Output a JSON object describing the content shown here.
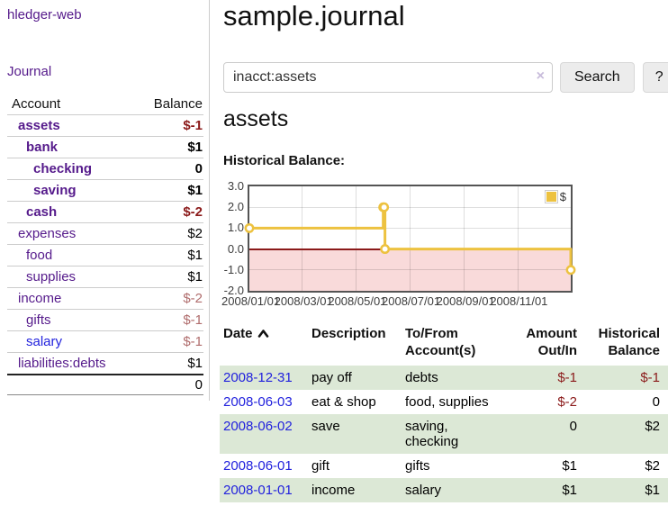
{
  "sidebar": {
    "app_title": "hledger-web",
    "nav": {
      "journal": "Journal"
    },
    "accounts_table": {
      "headers": {
        "account": "Account",
        "balance": "Balance"
      },
      "accounts": [
        {
          "name": "assets",
          "depth": 1,
          "bold": true,
          "link": "purple",
          "balance": "$-1",
          "tone": "neg-strong"
        },
        {
          "name": "bank",
          "depth": 2,
          "bold": true,
          "link": "purple",
          "balance": "$1",
          "tone": ""
        },
        {
          "name": "checking",
          "depth": 3,
          "bold": true,
          "link": "purple",
          "balance": "0",
          "tone": ""
        },
        {
          "name": "saving",
          "depth": 3,
          "bold": true,
          "link": "purple",
          "balance": "$1",
          "tone": ""
        },
        {
          "name": "cash",
          "depth": 2,
          "bold": true,
          "link": "purple",
          "balance": "$-2",
          "tone": "neg-strong"
        },
        {
          "name": "expenses",
          "depth": 1,
          "bold": false,
          "link": "purple",
          "balance": "$2",
          "tone": ""
        },
        {
          "name": "food",
          "depth": 2,
          "bold": false,
          "link": "purple",
          "balance": "$1",
          "tone": ""
        },
        {
          "name": "supplies",
          "depth": 2,
          "bold": false,
          "link": "purple",
          "balance": "$1",
          "tone": ""
        },
        {
          "name": "income",
          "depth": 1,
          "bold": false,
          "link": "purple",
          "balance": "$-2",
          "tone": "neg-light"
        },
        {
          "name": "gifts",
          "depth": 2,
          "bold": false,
          "link": "purple",
          "balance": "$-1",
          "tone": "neg-light"
        },
        {
          "name": "salary",
          "depth": 2,
          "bold": false,
          "link": "blue",
          "balance": "$-1",
          "tone": "neg-light"
        },
        {
          "name": "liabilities:debts",
          "depth": 1,
          "bold": false,
          "link": "purple",
          "balance": "$1",
          "tone": ""
        }
      ],
      "total": "0"
    }
  },
  "main": {
    "title": "sample.journal",
    "search": {
      "value": "inacct:assets",
      "clear_icon": "×",
      "button": "Search",
      "help_button": "?"
    },
    "account_heading": "assets",
    "chart_label": "Historical Balance:",
    "register": {
      "headers": {
        "date": "Date",
        "description": "Description",
        "accounts": "To/From Account(s)",
        "amount": "Amount Out/In",
        "balance": "Historical Balance"
      },
      "rows": [
        {
          "date": "2008-12-31",
          "description": "pay off",
          "accounts": "debts",
          "amount": "$-1",
          "amount_negative": true,
          "balance": "$-1",
          "balance_negative": true
        },
        {
          "date": "2008-06-03",
          "description": "eat & shop",
          "accounts": "food, supplies",
          "amount": "$-2",
          "amount_negative": true,
          "balance": "0",
          "balance_negative": false
        },
        {
          "date": "2008-06-02",
          "description": "save",
          "accounts": "saving, checking",
          "amount": "0",
          "amount_negative": false,
          "balance": "$2",
          "balance_negative": false
        },
        {
          "date": "2008-06-01",
          "description": "gift",
          "accounts": "gifts",
          "amount": "$1",
          "amount_negative": false,
          "balance": "$2",
          "balance_negative": false
        },
        {
          "date": "2008-01-01",
          "description": "income",
          "accounts": "salary",
          "amount": "$1",
          "amount_negative": false,
          "balance": "$1",
          "balance_negative": false
        }
      ]
    }
  },
  "chart_data": {
    "type": "line",
    "title": "Historical Balance",
    "legend": "$",
    "legend_position": "top-right",
    "grid": true,
    "step": true,
    "series": [
      {
        "name": "$",
        "color": "#edc240",
        "points": [
          {
            "x": "2008/01/01",
            "y": 1
          },
          {
            "x": "2008/06/01",
            "y": 2
          },
          {
            "x": "2008/06/02",
            "y": 2
          },
          {
            "x": "2008/06/03",
            "y": 0
          },
          {
            "x": "2008/12/31",
            "y": -1
          }
        ]
      }
    ],
    "x_ticks": [
      "2008/01/01",
      "2008/03/01",
      "2008/05/01",
      "2008/07/01",
      "2008/09/01",
      "2008/11/01"
    ],
    "x_range": [
      "2008/01/01",
      "2008/12/31"
    ],
    "y_ticks": [
      3.0,
      2.0,
      1.0,
      0.0,
      -1.0,
      -2.0
    ],
    "y_range": [
      -2,
      3
    ],
    "negative_region_color": "#f9dada",
    "zero_line_color": "#8b1a1a"
  },
  "colors": {
    "link_purple": "#551a8b",
    "link_blue": "#2222dd",
    "negative_strong": "#8b1a1a",
    "negative_light": "#b06d6d",
    "row_stripe_green": "#dce8d6",
    "series_yellow": "#edc240"
  }
}
